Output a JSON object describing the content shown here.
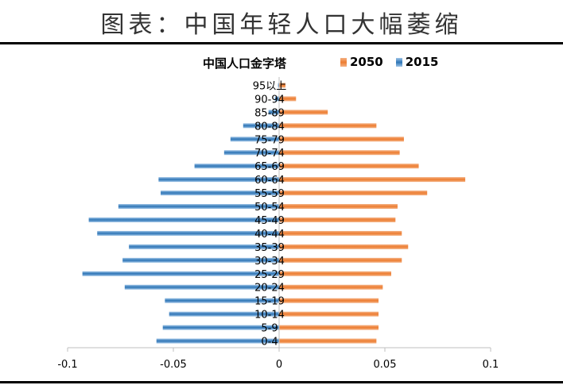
{
  "header": {
    "title": "图表：中国年轻人口大幅萎缩"
  },
  "colors": {
    "s2050": "#ed7d31",
    "s2015": "#2e75b6",
    "axis": "#bfbfbf"
  },
  "chart_data": {
    "type": "bar",
    "orientation": "horizontal",
    "title": "中国人口金字塔",
    "legend_position": "top",
    "categories": [
      "0-4",
      "5-9",
      "10-14",
      "15-19",
      "20-24",
      "25-29",
      "30-34",
      "35-39",
      "40-44",
      "45-49",
      "50-54",
      "55-59",
      "60-64",
      "65-69",
      "70-74",
      "75-79",
      "80-84",
      "85-89",
      "90-94",
      "95以上"
    ],
    "series": [
      {
        "name": "2050",
        "values": [
          0.046,
          0.047,
          0.047,
          0.047,
          0.049,
          0.053,
          0.058,
          0.061,
          0.058,
          0.055,
          0.056,
          0.07,
          0.088,
          0.066,
          0.057,
          0.059,
          0.046,
          0.023,
          0.008,
          0.003
        ]
      },
      {
        "name": "2015",
        "values": [
          -0.058,
          -0.055,
          -0.052,
          -0.054,
          -0.073,
          -0.093,
          -0.074,
          -0.071,
          -0.086,
          -0.09,
          -0.076,
          -0.056,
          -0.057,
          -0.04,
          -0.026,
          -0.023,
          -0.017,
          -0.005,
          -0.002,
          -0.0005
        ]
      }
    ],
    "xlim": [
      -0.1,
      0.1
    ],
    "xticks": [
      -0.1,
      -0.05,
      0,
      0.05,
      0.1
    ],
    "xtick_labels": [
      "-0.1",
      "-0.05",
      "0",
      "0.05",
      "0.1"
    ],
    "grid": false
  }
}
